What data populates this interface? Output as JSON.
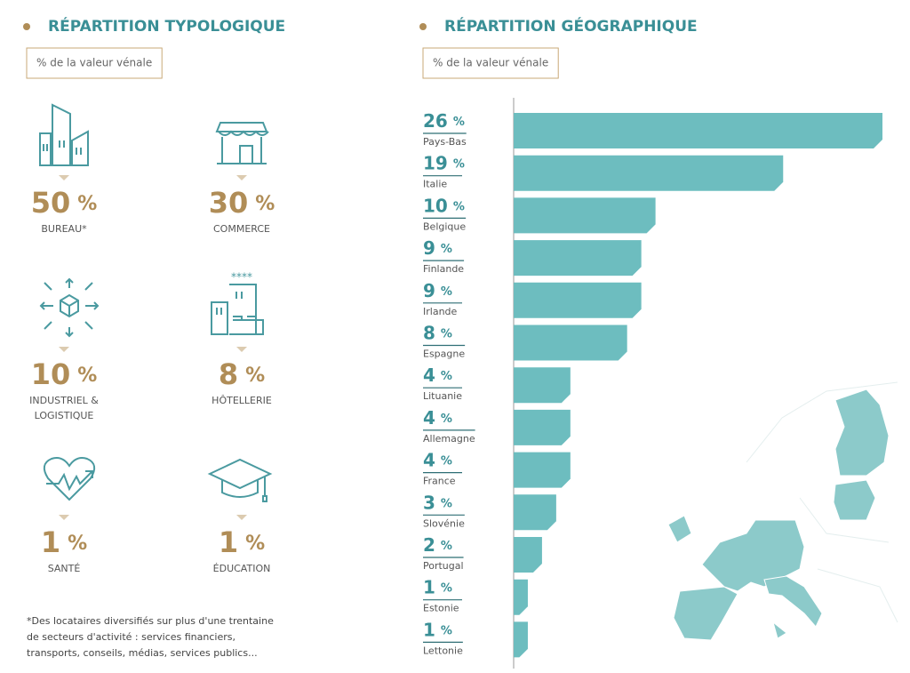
{
  "chart_data": [
    {
      "type": "stats",
      "title": "RÉPARTITION TYPOLOGIQUE",
      "subtitle": "% de la valeur vénale",
      "unit": "%",
      "categories": [
        "BUREAU*",
        "COMMERCE",
        "INDUSTRIEL & LOGISTIQUE",
        "HÔTELLERIE",
        "SANTÉ",
        "ÉDUCATION"
      ],
      "values": [
        50,
        30,
        10,
        8,
        1,
        1
      ],
      "color": "#b08d57",
      "note": "*Des locataires diversifiés sur plus d'une trentaine de secteurs d'activité : services financiers, transports, conseils, médias, services publics..."
    },
    {
      "type": "bar",
      "orientation": "horizontal",
      "title": "RÉPARTITION GÉOGRAPHIQUE",
      "subtitle": "% de la valeur vénale",
      "unit": "%",
      "categories": [
        "Pays-Bas",
        "Italie",
        "Belgique",
        "Finlande",
        "Irlande",
        "Espagne",
        "Lituanie",
        "Allemagne",
        "France",
        "Slovénie",
        "Portugal",
        "Estonie",
        "Lettonie"
      ],
      "values": [
        26,
        19,
        10,
        9,
        9,
        8,
        4,
        4,
        4,
        3,
        2,
        1,
        1
      ],
      "color": "#6dbdbf"
    }
  ]
}
